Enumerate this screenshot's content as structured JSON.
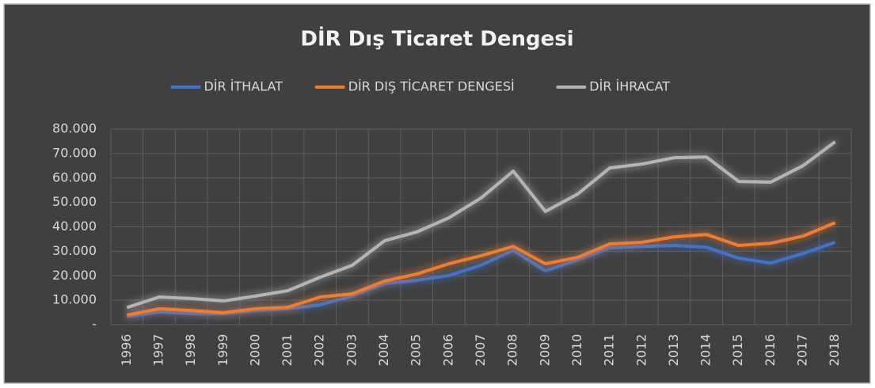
{
  "chart_data": {
    "type": "line",
    "title": "DİR Dış Ticaret Dengesi",
    "categories": [
      "1996",
      "1997",
      "1998",
      "1999",
      "2000",
      "2001",
      "2002",
      "2003",
      "2004",
      "2005",
      "2006",
      "2007",
      "2008",
      "2009",
      "2010",
      "2011",
      "2012",
      "2013",
      "2014",
      "2015",
      "2016",
      "2017",
      "2018"
    ],
    "series": [
      {
        "name": "DİR İTHALAT",
        "color": "#4472c4",
        "values": [
          3200,
          5200,
          4500,
          4500,
          5800,
          6500,
          8100,
          11700,
          16800,
          18100,
          20100,
          24300,
          30400,
          22000,
          26500,
          31400,
          32000,
          32400,
          31700,
          27200,
          25200,
          29100,
          33700
        ]
      },
      {
        "name": "DİR DIŞ TİCARET DENGESİ",
        "color": "#ed7d31",
        "values": [
          3900,
          6500,
          5800,
          4900,
          6500,
          7100,
          11300,
          12600,
          17800,
          20700,
          24900,
          28200,
          32000,
          24900,
          27500,
          33000,
          33700,
          35900,
          36900,
          32400,
          33300,
          36200,
          41700
        ]
      },
      {
        "name": "DİR İHRACAT",
        "color": "#b4b4b4",
        "values": [
          7000,
          11300,
          10700,
          9700,
          11700,
          13900,
          19400,
          24300,
          34300,
          37900,
          43700,
          51800,
          62800,
          46300,
          53400,
          64100,
          65700,
          68300,
          68600,
          58600,
          58300,
          65000,
          74800
        ]
      }
    ],
    "ylim": [
      0,
      80000
    ],
    "yticks": [
      {
        "value": 0,
        "label": "-"
      },
      {
        "value": 10000,
        "label": "10.000"
      },
      {
        "value": 20000,
        "label": "20.000"
      },
      {
        "value": 30000,
        "label": "30.000"
      },
      {
        "value": 40000,
        "label": "40.000"
      },
      {
        "value": 50000,
        "label": "50.000"
      },
      {
        "value": 60000,
        "label": "60.000"
      },
      {
        "value": 70000,
        "label": "70.000"
      },
      {
        "value": 80000,
        "label": "80.000"
      }
    ],
    "grid": true,
    "legend": "top"
  }
}
